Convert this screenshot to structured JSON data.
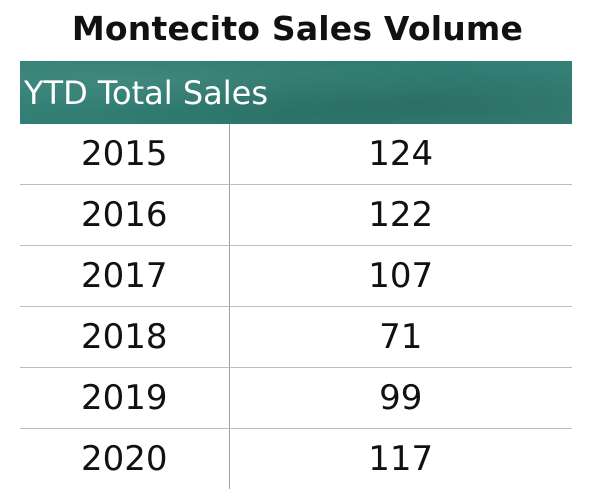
{
  "title": "Montecito Sales Volume",
  "chart_data": {
    "type": "table",
    "title": "Montecito Sales Volume",
    "columns": [
      "",
      "YTD Total Sales"
    ],
    "rows": [
      {
        "year": "2015",
        "value": "124"
      },
      {
        "year": "2016",
        "value": "122"
      },
      {
        "year": "2017",
        "value": "107"
      },
      {
        "year": "2018",
        "value": "71"
      },
      {
        "year": "2019",
        "value": "99"
      },
      {
        "year": "2020",
        "value": "117"
      }
    ],
    "header_color": "#2f7f74"
  }
}
